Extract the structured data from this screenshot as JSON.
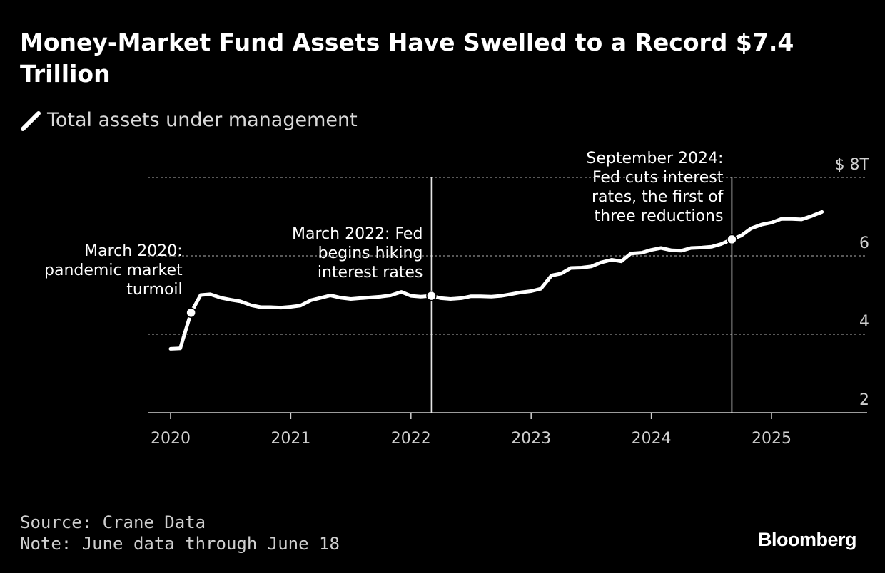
{
  "title": "Money-Market Fund Assets Have Swelled to a Record $7.4 Trillion",
  "legend": {
    "label": "Total assets under management"
  },
  "footer": {
    "source": "Source: Crane Data",
    "note": "Note: June data through June 18",
    "brand": "Bloomberg"
  },
  "colors": {
    "background": "#000000",
    "line": "#ffffff",
    "grid": "#8c8c8c",
    "text": "#ffffff",
    "muted": "#d0d0d0"
  },
  "chart_data": {
    "type": "line",
    "title": "Money-Market Fund Assets Have Swelled to a Record $7.4 Trillion",
    "xlabel": "",
    "ylabel": "",
    "ylim": [
      2,
      8
    ],
    "xlim": [
      2019.8,
      2025.8
    ],
    "grid": true,
    "y_ticks": [
      {
        "value": 8,
        "label": "$ 8T"
      },
      {
        "value": 6,
        "label": "6"
      },
      {
        "value": 4,
        "label": "4"
      },
      {
        "value": 2,
        "label": "2"
      }
    ],
    "x_ticks": [
      {
        "value": 2020,
        "label": "2020"
      },
      {
        "value": 2021,
        "label": "2021"
      },
      {
        "value": 2022,
        "label": "2022"
      },
      {
        "value": 2023,
        "label": "2023"
      },
      {
        "value": 2024,
        "label": "2024"
      },
      {
        "value": 2025,
        "label": "2025"
      }
    ],
    "series": [
      {
        "name": "Total assets under management",
        "x": [
          2020.0,
          2020.08,
          2020.17,
          2020.25,
          2020.33,
          2020.42,
          2020.5,
          2020.58,
          2020.67,
          2020.75,
          2020.83,
          2020.92,
          2021.0,
          2021.08,
          2021.17,
          2021.25,
          2021.33,
          2021.42,
          2021.5,
          2021.58,
          2021.67,
          2021.75,
          2021.83,
          2021.92,
          2022.0,
          2022.08,
          2022.17,
          2022.25,
          2022.33,
          2022.42,
          2022.5,
          2022.58,
          2022.67,
          2022.75,
          2022.83,
          2022.92,
          2023.0,
          2023.08,
          2023.17,
          2023.25,
          2023.33,
          2023.42,
          2023.5,
          2023.58,
          2023.67,
          2023.75,
          2023.83,
          2023.92,
          2024.0,
          2024.08,
          2024.17,
          2024.25,
          2024.33,
          2024.42,
          2024.5,
          2024.58,
          2024.67,
          2024.75,
          2024.83,
          2024.92,
          2025.0,
          2025.08,
          2025.17,
          2025.25,
          2025.33,
          2025.42
        ],
        "values": [
          3.63,
          3.64,
          4.55,
          5.0,
          5.02,
          4.93,
          4.88,
          4.84,
          4.74,
          4.69,
          4.69,
          4.68,
          4.7,
          4.73,
          4.87,
          4.93,
          4.99,
          4.93,
          4.9,
          4.92,
          4.94,
          4.96,
          4.99,
          5.08,
          4.98,
          4.96,
          4.98,
          4.92,
          4.9,
          4.92,
          4.97,
          4.97,
          4.96,
          4.98,
          5.02,
          5.07,
          5.1,
          5.16,
          5.5,
          5.55,
          5.69,
          5.7,
          5.73,
          5.83,
          5.9,
          5.86,
          6.06,
          6.08,
          6.15,
          6.2,
          6.14,
          6.13,
          6.2,
          6.21,
          6.23,
          6.3,
          6.42,
          6.52,
          6.7,
          6.8,
          6.85,
          6.94,
          6.94,
          6.93,
          7.01,
          7.12
        ]
      }
    ],
    "events": [
      {
        "x": 2020.17,
        "y": 4.55,
        "label": [
          "March 2020:",
          "pandemic market",
          "turmoil"
        ],
        "vertical_line": false
      },
      {
        "x": 2022.17,
        "y": 4.98,
        "label": [
          "March 2022: Fed",
          "begins hiking",
          "interest rates"
        ],
        "vertical_line": true
      },
      {
        "x": 2024.67,
        "y": 6.42,
        "label": [
          "September 2024:",
          "Fed cuts interest",
          "rates, the first of",
          "three reductions"
        ],
        "vertical_line": true
      }
    ]
  }
}
